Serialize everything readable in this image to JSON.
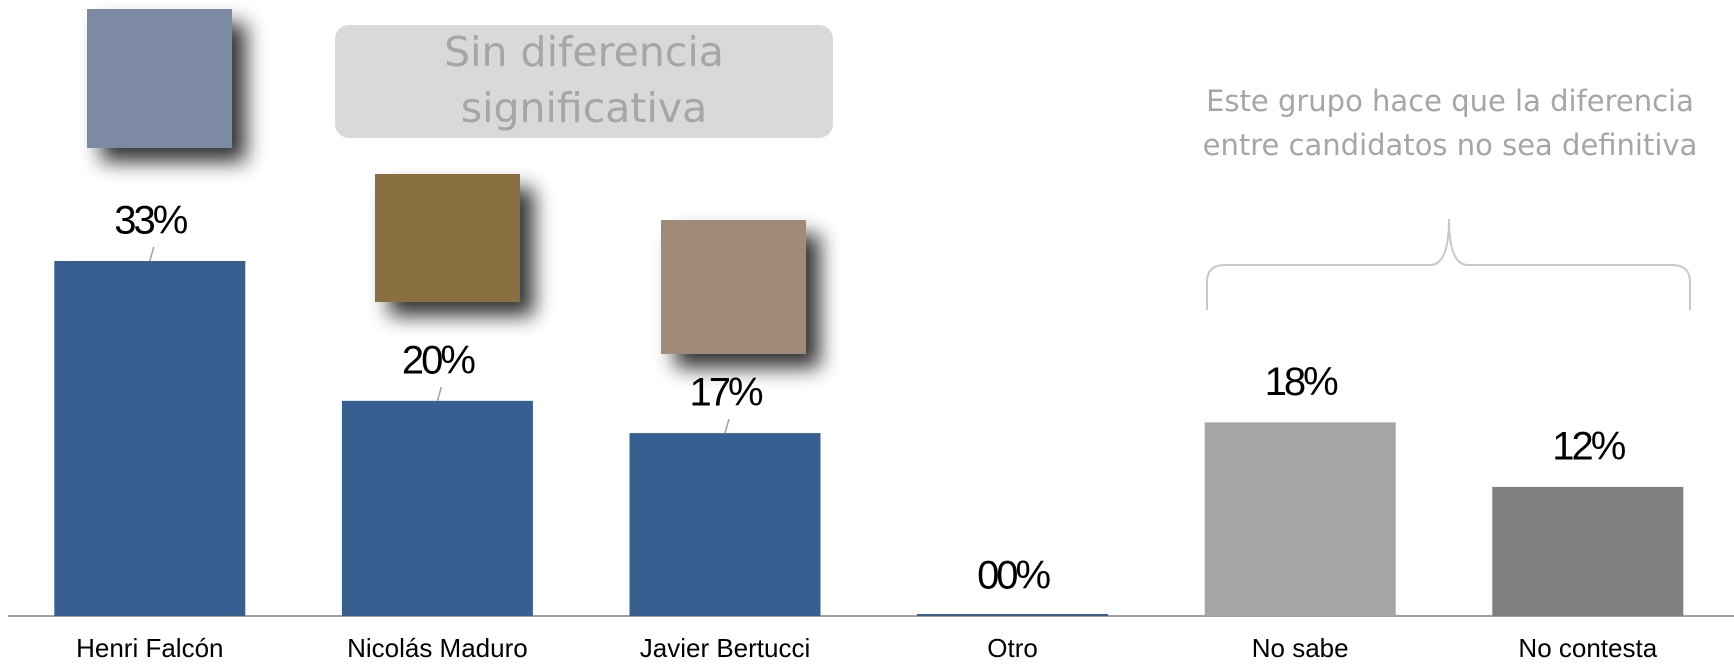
{
  "chart_data": {
    "type": "bar",
    "categories": [
      "Henri Falcón",
      "Nicolás Maduro",
      "Javier Bertucci",
      "Otro",
      "No sabe",
      "No contesta"
    ],
    "values": [
      33,
      20,
      17,
      0,
      18,
      12
    ],
    "value_labels": [
      "33%",
      "20%",
      "17%",
      "00%",
      "18%",
      "12%"
    ],
    "colors": [
      "#375f91",
      "#375f91",
      "#375f91",
      "#375f91",
      "#a5a5a5",
      "#7f7f7f"
    ],
    "annotations": [
      "Sin diferencia",
      "significativa",
      "Este grupo hace que la diferencia",
      "entre candidatos no sea definitiva"
    ]
  }
}
